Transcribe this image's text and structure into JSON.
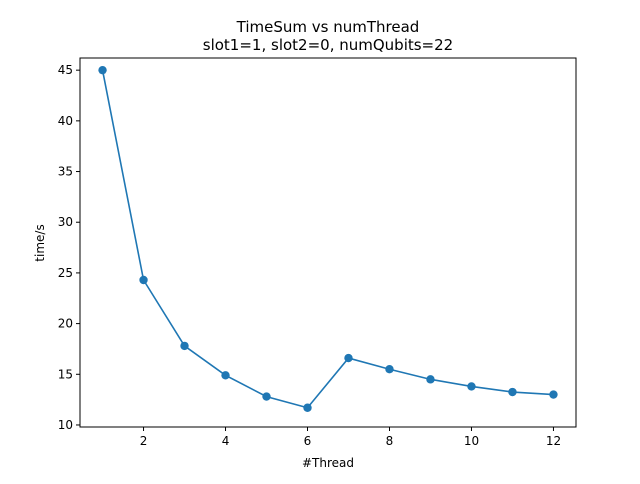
{
  "chart_data": {
    "type": "line",
    "title": "TimeSum vs numThread",
    "subtitle": "slot1=1, slot2=0, numQubits=22",
    "xlabel": "#Thread",
    "ylabel": "time/s",
    "x": [
      1,
      2,
      3,
      4,
      5,
      6,
      7,
      8,
      9,
      10,
      11,
      12
    ],
    "series": [
      {
        "values": [
          45.0,
          24.3,
          17.8,
          14.9,
          12.8,
          11.7,
          16.6,
          15.5,
          14.5,
          13.8,
          13.25,
          13.0
        ],
        "color": "#1f77b4",
        "marker": "circle"
      }
    ],
    "xlim": [
      0.45,
      12.55
    ],
    "ylim": [
      9.8,
      46.2
    ],
    "xticks": [
      2,
      4,
      6,
      8,
      10,
      12
    ],
    "yticks": [
      10,
      15,
      20,
      25,
      30,
      35,
      40,
      45
    ],
    "grid": false,
    "legend": "none"
  }
}
